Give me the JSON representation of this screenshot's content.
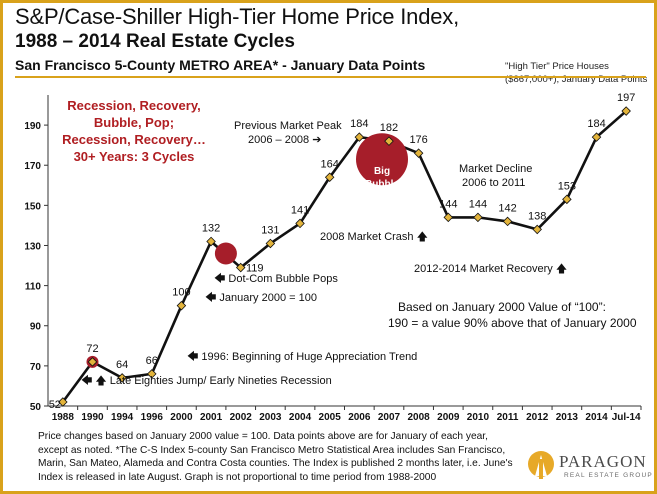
{
  "title_line1": "S&P/Case-Shiller High-Tier Home Price Index,",
  "title_line2": "1988 – 2014 Real Estate Cycles",
  "subtitle": "San Francisco 5-County METRO AREA* - January Data Points",
  "tier_note_line1": "\"High Tier\" Price Houses",
  "tier_note_line2": "($867,000+), January Data Points",
  "footnote": "Price changes based on January 2000 value = 100.  Data points above are for January of each year, except as noted. *The C-S Index 5-county San Francisco Metro Statistical Area includes San Francisco, Marin, San Mateo, Alameda and Contra Costa counties. The Index is published 2 months later, i.e. June's Index is released in late August. Graph is not proportional to time period from 1988-2000",
  "logo": {
    "name": "PARAGON",
    "sub": "REAL ESTATE GROUP"
  },
  "colors": {
    "border": "#d9a21b",
    "line": "#111111",
    "marker": "#e3b43b",
    "bubble": "#a61e2a",
    "callout": "#b01e22"
  },
  "callout": [
    "Recession, Recovery,",
    "Bubble, Pop;",
    "Recession, Recovery…",
    "30+ Years: 3 Cycles"
  ],
  "big_bubble": [
    "Big",
    "Bubble"
  ],
  "annotations": [
    {
      "id": "prev-peak-1",
      "text": "Previous Market Peak"
    },
    {
      "id": "prev-peak-2",
      "text": "2006 – 2008 ➔"
    },
    {
      "id": "decline-1",
      "text": "Market Decline"
    },
    {
      "id": "decline-2",
      "text": "2006 to 2011"
    },
    {
      "id": "crash",
      "text": "2008 Market Crash 🡅"
    },
    {
      "id": "recovery",
      "text": "2012-2014 Market Recovery 🡅"
    },
    {
      "id": "dotcom",
      "text": "🡄 Dot-Com Bubble Pops"
    },
    {
      "id": "jan2000",
      "text": "🡄 January 2000 = 100"
    },
    {
      "id": "trend",
      "text": "🡄 1996: Beginning of Huge Appreciation Trend"
    },
    {
      "id": "eighties",
      "text": "🡄 🡅 Late Eighties Jump/ Early Nineties Recession"
    },
    {
      "id": "based-1",
      "text": "Based on January 2000 Value of “100”:"
    },
    {
      "id": "based-2",
      "text": "190 = a value 90% above that of January 2000"
    }
  ],
  "chart_data": {
    "type": "line",
    "title": "S&P/Case-Shiller High-Tier Home Price Index, 1988 – 2014 Real Estate Cycles",
    "categories": [
      "1988",
      "1990",
      "1994",
      "1996",
      "2000",
      "2001",
      "2002",
      "2003",
      "2004",
      "2005",
      "2006",
      "2007",
      "2008",
      "2009",
      "2010",
      "2011",
      "2012",
      "2013",
      "2014",
      "Jul-14"
    ],
    "values": [
      52,
      72,
      64,
      66,
      100,
      132,
      119,
      131,
      141,
      164,
      184,
      182,
      176,
      144,
      144,
      142,
      138,
      153,
      184,
      197
    ],
    "labels": [
      "52",
      "72",
      "64",
      "66",
      "100",
      "132",
      "119",
      "131",
      "141",
      "164",
      "184",
      "182",
      "176",
      "144",
      "",
      "142",
      "138",
      "153",
      "184",
      "197"
    ],
    "yticks": [
      50,
      70,
      90,
      110,
      130,
      150,
      170,
      190
    ],
    "ylim": [
      50,
      205
    ],
    "grid": false
  }
}
